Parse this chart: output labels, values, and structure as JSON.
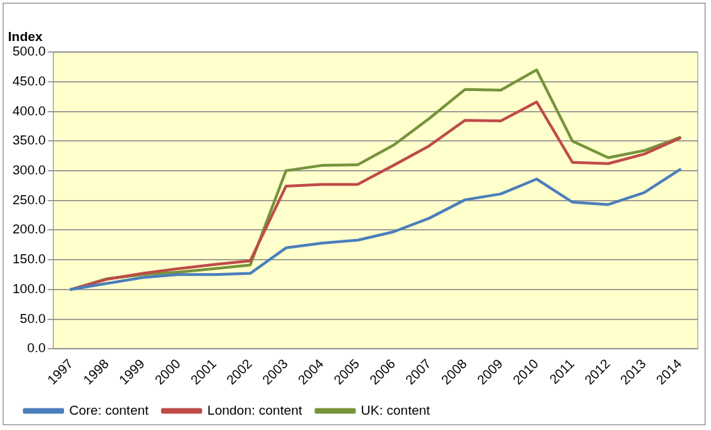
{
  "chart_data": {
    "type": "line",
    "ylabel": "Index",
    "categories": [
      "1997",
      "1998",
      "1999",
      "2000",
      "2001",
      "2002",
      "2003",
      "2004",
      "2005",
      "2006",
      "2007",
      "2008",
      "2009",
      "2010",
      "2011",
      "2012",
      "2013",
      "2014"
    ],
    "series": [
      {
        "name": "Core: content",
        "color": "#4a7ebb",
        "values": [
          100,
          110,
          120,
          125,
          125,
          127,
          170,
          178,
          183,
          197,
          220,
          251,
          261,
          286,
          247,
          243,
          263,
          302
        ]
      },
      {
        "name": "London: content",
        "color": "#be4b48",
        "values": [
          100,
          117,
          127,
          135,
          142,
          148,
          274,
          277,
          277,
          309,
          342,
          385,
          384,
          416,
          314,
          312,
          328,
          355
        ]
      },
      {
        "name": "UK: content",
        "color": "#77933c",
        "values": [
          100,
          118,
          125,
          129,
          135,
          141,
          300,
          309,
          310,
          343,
          388,
          437,
          436,
          470,
          350,
          322,
          334,
          356
        ]
      }
    ],
    "ylim": [
      0,
      500
    ],
    "yticks": [
      {
        "value": 0,
        "label": "0.0"
      },
      {
        "value": 50,
        "label": "50.0"
      },
      {
        "value": 100,
        "label": "100.0"
      },
      {
        "value": 150,
        "label": "150.0"
      },
      {
        "value": 200,
        "label": "200.0"
      },
      {
        "value": 250,
        "label": "250.0"
      },
      {
        "value": 300,
        "label": "300.0"
      },
      {
        "value": 350,
        "label": "350.0"
      },
      {
        "value": 400,
        "label": "400.0"
      },
      {
        "value": 450,
        "label": "450.0"
      },
      {
        "value": 500,
        "label": "500.0"
      }
    ],
    "grid": "y",
    "legend": "bottom",
    "marker": "none",
    "line_style": "solid"
  }
}
